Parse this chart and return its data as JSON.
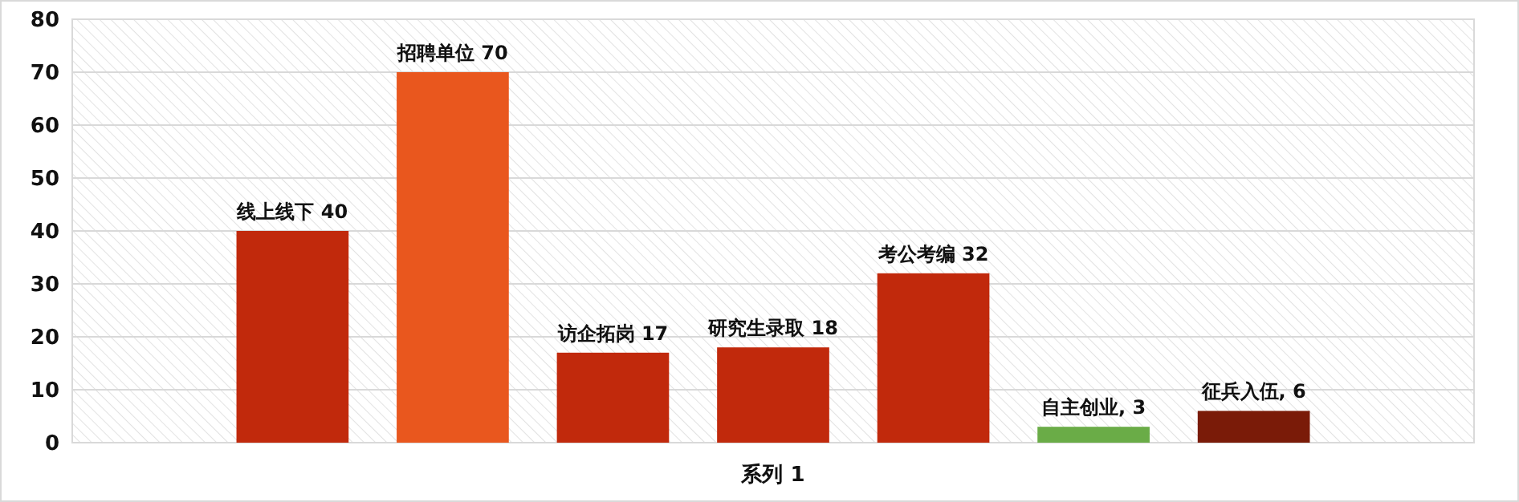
{
  "chart_data": {
    "type": "bar",
    "categories": [
      "系列 1"
    ],
    "ylim": [
      0,
      80
    ],
    "yticks": [
      0,
      10,
      20,
      30,
      40,
      50,
      60,
      70,
      80
    ],
    "grid": "y",
    "series": [
      {
        "color": "#c1290c",
        "values": [
          40
        ],
        "value_labels": [
          "线上线下 40"
        ]
      },
      {
        "color": "#e9571e",
        "values": [
          70
        ],
        "value_labels": [
          "招聘单位 70"
        ]
      },
      {
        "color": "#c1290c",
        "values": [
          17
        ],
        "value_labels": [
          "访企拓岗 17"
        ]
      },
      {
        "color": "#c1290c",
        "values": [
          18
        ],
        "value_labels": [
          "研究生录取 18"
        ]
      },
      {
        "color": "#c1290c",
        "values": [
          32
        ],
        "value_labels": [
          "考公考编 32"
        ]
      },
      {
        "color": "#6aac47",
        "values": [
          3
        ],
        "value_labels": [
          "自主创业, 3"
        ]
      },
      {
        "color": "#7a1b08",
        "values": [
          6
        ],
        "value_labels": [
          "征兵入伍, 6"
        ]
      }
    ]
  }
}
